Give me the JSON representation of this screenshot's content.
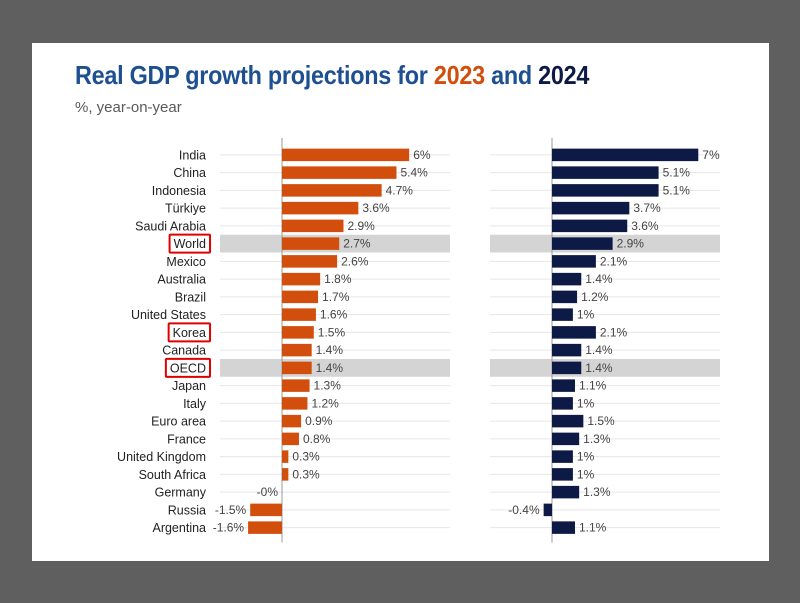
{
  "title": {
    "prefix": "Real GDP growth projections for ",
    "year_a": "2023",
    "middle": " and ",
    "year_b": "2024"
  },
  "subtitle": "%, year-on-year",
  "colors": {
    "series_2023": "#d24e0c",
    "series_2024": "#0c1a45",
    "highlight_band": "#d4d4d4",
    "highlight_box": "#e00000",
    "gridline": "#e6e6e6",
    "axis": "#999999"
  },
  "chart_data": {
    "type": "bar",
    "orientation": "horizontal",
    "categories": [
      "India",
      "China",
      "Indonesia",
      "Türkiye",
      "Saudi Arabia",
      "World",
      "Mexico",
      "Australia",
      "Brazil",
      "United States",
      "Korea",
      "Canada",
      "OECD",
      "Japan",
      "Italy",
      "Euro area",
      "France",
      "United Kingdom",
      "South Africa",
      "Germany",
      "Russia",
      "Argentina"
    ],
    "series": [
      {
        "name": "2023",
        "values": [
          6,
          5.4,
          4.7,
          3.6,
          2.9,
          2.7,
          2.6,
          1.8,
          1.7,
          1.6,
          1.5,
          1.4,
          1.4,
          1.3,
          1.2,
          0.9,
          0.8,
          0.3,
          0.3,
          -0.0,
          -1.5,
          -1.6
        ],
        "labels": [
          "6%",
          "5.4%",
          "4.7%",
          "3.6%",
          "2.9%",
          "2.7%",
          "2.6%",
          "1.8%",
          "1.7%",
          "1.6%",
          "1.5%",
          "1.4%",
          "1.4%",
          "1.3%",
          "1.2%",
          "0.9%",
          "0.8%",
          "0.3%",
          "0.3%",
          "-0%",
          "-1.5%",
          "-1.6%"
        ]
      },
      {
        "name": "2024",
        "values": [
          7,
          5.1,
          5.1,
          3.7,
          3.6,
          2.9,
          2.1,
          1.4,
          1.2,
          1,
          2.1,
          1.4,
          1.4,
          1.1,
          1,
          1.5,
          1.3,
          1,
          1,
          1.3,
          -0.4,
          1.1
        ],
        "labels": [
          "7%",
          "5.1%",
          "5.1%",
          "3.7%",
          "3.6%",
          "2.9%",
          "2.1%",
          "1.4%",
          "1.2%",
          "1%",
          "2.1%",
          "1.4%",
          "1.4%",
          "1.1%",
          "1%",
          "1.5%",
          "1.3%",
          "1%",
          "1%",
          "1.3%",
          "-0.4%",
          "1.1%"
        ]
      }
    ],
    "highlighted_bands": [
      "World",
      "OECD"
    ],
    "boxed_labels": [
      "World",
      "Korea",
      "OECD"
    ],
    "grid": true
  }
}
